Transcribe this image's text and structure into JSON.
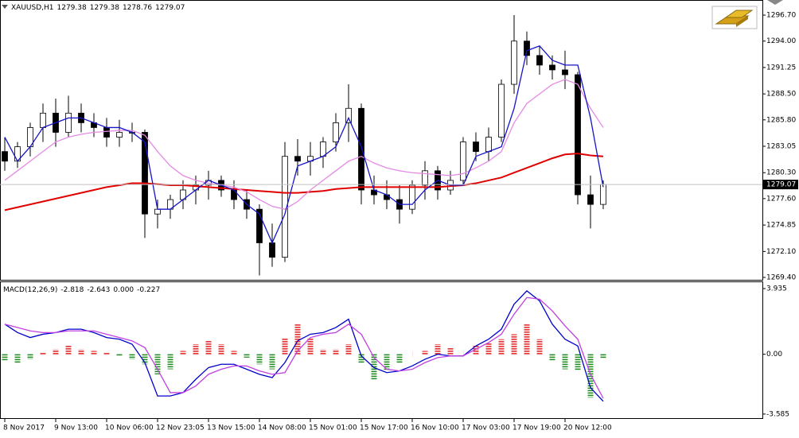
{
  "chart_data": [
    {
      "type": "candlestick",
      "title": "XAUUSD,H1",
      "title_values": [
        1279.38,
        1279.38,
        1278.76,
        1279.07
      ],
      "last_price": 1279.07,
      "categories": [
        "8 Nov 2017",
        null,
        null,
        null,
        "9 Nov 13:00",
        null,
        null,
        null,
        "10 Nov 06:00",
        null,
        null,
        null,
        "12 Nov 23:05",
        null,
        null,
        null,
        "13 Nov 15:00",
        null,
        null,
        null,
        "14 Nov 08:00",
        null,
        null,
        null,
        "15 Nov 01:00",
        null,
        null,
        null,
        "15 Nov 17:00",
        null,
        null,
        null,
        "16 Nov 10:00",
        null,
        null,
        null,
        "17 Nov 03:00",
        null,
        null,
        null,
        "17 Nov 19:00",
        null,
        null,
        null,
        "20 Nov 12:00",
        null,
        null,
        null
      ],
      "open": [
        1282.5,
        1281.5,
        1283,
        1285,
        1286.5,
        1284.5,
        1286.5,
        1285.5,
        1285,
        1284,
        1284.5,
        1284.5,
        1276,
        1276.5,
        1277.5,
        1278.5,
        1279,
        1279.5,
        1278.5,
        1277.5,
        1276.5,
        1273,
        1271.5,
        1282,
        1281.5,
        1282,
        1283.5,
        1285.5,
        1287,
        1278.5,
        1278,
        1277.5,
        1276.5,
        1279,
        1280.5,
        1278.5,
        1279.5,
        1283.5,
        1282.5,
        1284,
        1289.5,
        1294,
        1292.5,
        1291.5,
        1291,
        1290.5,
        1278,
        1277
      ],
      "high": [
        1284,
        1283.5,
        1285.5,
        1287.5,
        1288,
        1288.3,
        1287.5,
        1286.5,
        1286,
        1285.8,
        1285.5,
        1284.8,
        1277.5,
        1278,
        1279.5,
        1280,
        1280.5,
        1280,
        1279.5,
        1278.5,
        1277,
        1275,
        1283.5,
        1283.8,
        1283.5,
        1284,
        1286.5,
        1289.5,
        1287.5,
        1280,
        1279.5,
        1279,
        1279.5,
        1281.5,
        1281,
        1280.5,
        1284,
        1284.5,
        1285,
        1290,
        1296.7,
        1295,
        1293.5,
        1292.5,
        1293,
        1290.8,
        1280,
        1279.5
      ],
      "low": [
        1280.5,
        1280.8,
        1282,
        1283.5,
        1283,
        1284,
        1284.5,
        1284,
        1283,
        1283,
        1283.5,
        1273.5,
        1274.5,
        1275.5,
        1276.5,
        1277,
        1277.5,
        1277.8,
        1276.5,
        1275.5,
        1269.6,
        1270.5,
        1271,
        1280,
        1280,
        1280.8,
        1282.5,
        1283.5,
        1277,
        1277,
        1276.5,
        1275,
        1276,
        1277.5,
        1277.5,
        1278,
        1279,
        1281.5,
        1281.5,
        1283.5,
        1288.5,
        1291.5,
        1290.5,
        1290,
        1289,
        1277,
        1274.5,
        1276.5
      ],
      "close": [
        1281.5,
        1283,
        1285,
        1286.5,
        1284.5,
        1286.5,
        1285.5,
        1285,
        1284,
        1284.5,
        1284.5,
        1276,
        1276.5,
        1277.5,
        1278.5,
        1279,
        1279.5,
        1278.5,
        1277.5,
        1276.5,
        1273,
        1271.5,
        1282,
        1281.5,
        1282,
        1283.5,
        1285.5,
        1287,
        1278.5,
        1278,
        1277.5,
        1276.5,
        1279,
        1280.5,
        1278.5,
        1279.5,
        1283.5,
        1282.5,
        1284,
        1289.5,
        1294,
        1292.5,
        1291.5,
        1291,
        1290.5,
        1278,
        1277,
        1279.07
      ],
      "series": [
        {
          "color": "#e00000",
          "values": [
            1276.4,
            1276.7,
            1277,
            1277.3,
            1277.6,
            1277.9,
            1278.2,
            1278.5,
            1278.8,
            1279,
            1279.2,
            1279.2,
            1279.1,
            1279,
            1279,
            1278.9,
            1278.8,
            1278.7,
            1278.6,
            1278.5,
            1278.4,
            1278.3,
            1278.2,
            1278.2,
            1278.3,
            1278.4,
            1278.6,
            1278.7,
            1278.8,
            1278.8,
            1278.8,
            1278.8,
            1278.8,
            1278.8,
            1278.8,
            1278.9,
            1279,
            1279.2,
            1279.5,
            1279.8,
            1280.3,
            1280.8,
            1281.3,
            1281.8,
            1282.2,
            1282.3,
            1282.1,
            1282
          ]
        },
        {
          "color": "#e48ae4",
          "values": [
            1279.5,
            1280.5,
            1281.5,
            1282.5,
            1283.5,
            1284,
            1284.3,
            1284.5,
            1284.6,
            1284.7,
            1284.7,
            1284.2,
            1282.5,
            1281,
            1280,
            1279.5,
            1279.2,
            1279,
            1278.8,
            1278.3,
            1277.5,
            1276.8,
            1276.5,
            1277.3,
            1278.5,
            1279.5,
            1280.5,
            1281.5,
            1282,
            1281.3,
            1280.8,
            1280.5,
            1280.3,
            1280.2,
            1280.1,
            1280,
            1280.2,
            1280.8,
            1281.5,
            1282.5,
            1285.5,
            1287.5,
            1288.5,
            1289.5,
            1290,
            1289.5,
            1287,
            1285
          ]
        },
        {
          "color": "#1414c8",
          "values": [
            1284,
            1281.5,
            1283,
            1285,
            1285.5,
            1286,
            1286,
            1285.5,
            1285,
            1285,
            1284.5,
            1283.5,
            1276.5,
            1276.5,
            1277.5,
            1278.5,
            1279.5,
            1279,
            1278.5,
            1277,
            1276,
            1273,
            1276,
            1281,
            1281.5,
            1282,
            1283,
            1286,
            1283,
            1278.5,
            1278,
            1277,
            1277,
            1278.5,
            1279.5,
            1279,
            1279,
            1282,
            1282.5,
            1283,
            1287,
            1293,
            1293.5,
            1292,
            1291.5,
            1291.5,
            1286,
            1278.8
          ]
        }
      ],
      "ylim": [
        1269.15,
        1298.11
      ],
      "yticks": [
        {
          "value": 1296.7,
          "label": "1296.70"
        },
        {
          "value": 1294,
          "label": "1294.00"
        },
        1291.25,
        {
          "value": 1288.5,
          "label": "1288.50"
        },
        {
          "value": 1285.8,
          "label": "1285.80"
        },
        1283.05,
        {
          "value": 1280.3,
          "label": "1280.30"
        },
        {
          "value": 1277.6,
          "label": "1277.60"
        },
        1274.85,
        {
          "value": 1272.1,
          "label": "1272.10"
        },
        {
          "value": 1269.4,
          "label": "1269.40"
        }
      ]
    },
    {
      "type": "bar",
      "title": "MACD(12,26,9)",
      "title_values": [
        -2.818,
        -2.643,
        {
          "value": 0,
          "label": "0.000"
        },
        -0.227
      ],
      "up_color": "#e02020",
      "down_color": "#1e8a1e",
      "values": [
        -0.4,
        -0.5,
        -0.3,
        0.1,
        0.3,
        0.5,
        0.3,
        0.2,
        0.1,
        -0.1,
        -0.3,
        -0.6,
        -1.2,
        -0.9,
        0.2,
        0.6,
        0.8,
        0.6,
        0.2,
        -0.2,
        -0.6,
        -0.9,
        1.0,
        1.8,
        1.0,
        0.3,
        0.3,
        0.6,
        -0.5,
        -1.5,
        -1.0,
        -0.5,
        0.0,
        0.2,
        0.6,
        0.4,
        0.0,
        0.5,
        0.7,
        0.9,
        1.2,
        1.8,
        0.9,
        -0.4,
        -0.9,
        -1.0,
        -2.6,
        -0.227
      ],
      "series": [
        {
          "color": "#0000cc",
          "values": [
            1.8,
            1.3,
            1.0,
            1.2,
            1.3,
            1.5,
            1.5,
            1.3,
            1.0,
            0.9,
            0.6,
            -0.5,
            -2.5,
            -2.5,
            -2.3,
            -1.5,
            -0.8,
            -0.6,
            -0.6,
            -0.9,
            -1.2,
            -1.4,
            -0.5,
            0.8,
            1.2,
            1.3,
            1.6,
            2.1,
            -0.1,
            -0.8,
            -1.1,
            -1.0,
            -0.7,
            -0.3,
            0.0,
            -0.1,
            -0.1,
            0.5,
            0.9,
            1.5,
            3.0,
            3.8,
            3.2,
            1.8,
            0.9,
            0.5,
            -2.0,
            -2.818
          ]
        },
        {
          "color": "#c040e0",
          "values": [
            1.8,
            1.6,
            1.4,
            1.3,
            1.3,
            1.4,
            1.4,
            1.4,
            1.2,
            1.0,
            0.8,
            0.4,
            -0.9,
            -2.3,
            -2.3,
            -1.9,
            -1.2,
            -0.9,
            -0.7,
            -0.7,
            -1.0,
            -1.2,
            -1.1,
            0.2,
            1.0,
            1.2,
            1.3,
            1.8,
            1.2,
            -0.2,
            -0.9,
            -1.0,
            -0.9,
            -0.5,
            -0.2,
            -0.1,
            -0.1,
            0.3,
            0.7,
            1.2,
            2.4,
            3.4,
            3.3,
            2.6,
            1.7,
            0.9,
            -1.2,
            -2.643
          ]
        }
      ],
      "ylim": [
        -3.78,
        4.27
      ],
      "yticks": [
        3.935,
        {
          "value": 0,
          "label": "0.00"
        },
        -3.585
      ]
    }
  ]
}
